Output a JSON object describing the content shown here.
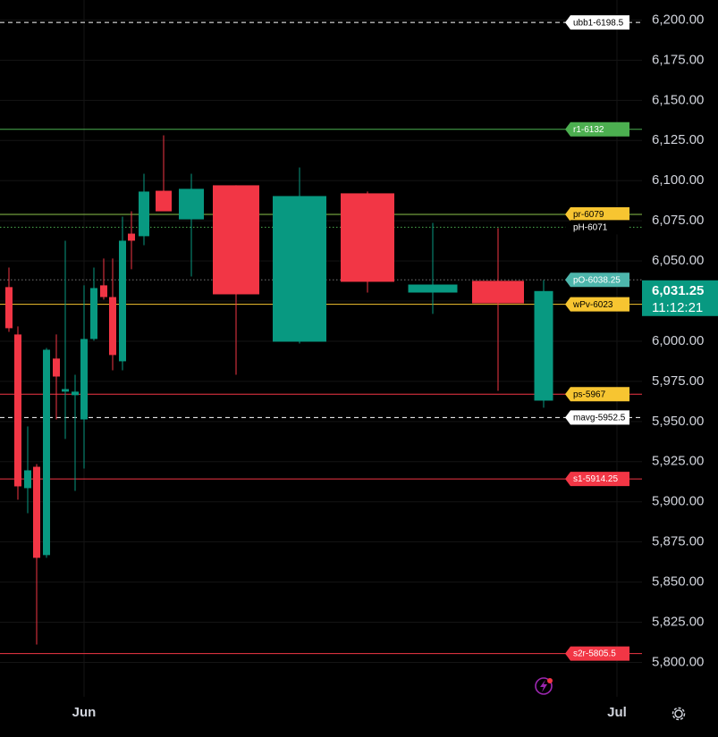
{
  "chart_data": {
    "type": "candlestick",
    "up_color": "#089981",
    "down_color": "#f23645",
    "ylim": [
      5780,
      6212.5
    ],
    "yticks": [
      {
        "value": 5800,
        "label": "5,800.00"
      },
      {
        "value": 5825,
        "label": "5,825.00"
      },
      {
        "value": 5850,
        "label": "5,850.00"
      },
      {
        "value": 5875,
        "label": "5,875.00"
      },
      {
        "value": 5900,
        "label": "5,900.00"
      },
      {
        "value": 5925,
        "label": "5,925.00"
      },
      {
        "value": 5950,
        "label": "5,950.00"
      },
      {
        "value": 5975,
        "label": "5,975.00"
      },
      {
        "value": 6000,
        "label": "6,000.00"
      },
      {
        "value": 6025,
        "label": "6,025.00"
      },
      {
        "value": 6050,
        "label": "6,050.00"
      },
      {
        "value": 6075,
        "label": "6,075.00"
      },
      {
        "value": 6100,
        "label": "6,100.00"
      },
      {
        "value": 6125,
        "label": "6,125.00"
      },
      {
        "value": 6150,
        "label": "6,150.00"
      },
      {
        "value": 6175,
        "label": "6,175.00"
      },
      {
        "value": 6200,
        "label": "6,200.00"
      }
    ],
    "grid": true,
    "x_labels": [
      "Jun",
      "Jul"
    ],
    "candles": [
      {
        "open": 6033.7,
        "high": 6045.9,
        "low": 6005.8,
        "close": 6008.1
      },
      {
        "open": 6004.2,
        "high": 6009.2,
        "low": 5901.3,
        "close": 5909.6
      },
      {
        "open": 5908.5,
        "high": 5946.9,
        "low": 5892.9,
        "close": 5919.6
      },
      {
        "open": 5921.8,
        "high": 5923.5,
        "low": 5811.1,
        "close": 5865.1
      },
      {
        "open": 5866.8,
        "high": 5995.8,
        "low": 5865.1,
        "close": 5994.7
      },
      {
        "open": 5989.2,
        "high": 6004.2,
        "low": 5951.3,
        "close": 5978.0
      },
      {
        "open": 5968.6,
        "high": 6062.6,
        "low": 5939.1,
        "close": 5970.2
      },
      {
        "open": 5966.4,
        "high": 5979.1,
        "low": 5906.8,
        "close": 5968.6
      },
      {
        "open": 5951.3,
        "high": 6034.8,
        "low": 5920.7,
        "close": 6001.4
      },
      {
        "open": 6001.4,
        "high": 6045.9,
        "low": 6000.3,
        "close": 6033.1
      },
      {
        "open": 6034.8,
        "high": 6051.5,
        "low": 6025.9,
        "close": 6027.5
      },
      {
        "open": 6027.5,
        "high": 6051.5,
        "low": 5981.9,
        "close": 5991.4
      },
      {
        "open": 5987.5,
        "high": 6077.6,
        "low": 5981.9,
        "close": 6062.6
      },
      {
        "open": 6067.0,
        "high": 6080.9,
        "low": 6044.8,
        "close": 6062.6
      },
      {
        "open": 6065.4,
        "high": 6104.3,
        "low": 6059.8,
        "close": 6093.2
      },
      {
        "open": 6093.7,
        "high": 6128.2,
        "low": 6080.9,
        "close": 6080.9
      },
      {
        "open": 6075.9,
        "high": 6104.3,
        "low": 6040.3,
        "close": 6094.9
      },
      {
        "open": 6097.1,
        "high": 6097.1,
        "low": 5979.1,
        "close": 6029.2
      },
      {
        "open": 5999.7,
        "high": 6108.2,
        "low": 5998.6,
        "close": 6090.4
      },
      {
        "open": 6092.1,
        "high": 6093.2,
        "low": 6030.3,
        "close": 6037.0
      },
      {
        "open": 6030.3,
        "high": 6073.7,
        "low": 6017.0,
        "close": 6035.3
      },
      {
        "open": 6037.6,
        "high": 6070.4,
        "low": 5969.1,
        "close": 6023.6
      },
      {
        "open": 5963.0,
        "high": 6038.1,
        "low": 5958.6,
        "close": 6031.25
      }
    ],
    "levels": [
      {
        "label": "ubb1-6198.5",
        "value": 6198.5,
        "color": "#ffffff",
        "text_color": "#000000",
        "style": "dashed"
      },
      {
        "label": "r1-6132",
        "value": 6132,
        "color": "#4caf50",
        "text_color": "#ffffff",
        "style": "solid"
      },
      {
        "label": "pr-6079",
        "value": 6079,
        "color": "#f7c531",
        "line_color": "#8bc34a",
        "text_color": "#000000",
        "style": "solid"
      },
      {
        "label": "pH-6071",
        "value": 6071,
        "color": "#000000",
        "line_color": "#4caf50",
        "text_color": "#ffffff",
        "style": "dotted"
      },
      {
        "label": "pO-6038.25",
        "value": 6038.25,
        "color": "#4db6ac",
        "line_color": "#777777",
        "text_color": "#ffffff",
        "style": "dotted"
      },
      {
        "label": "wPv-6023",
        "value": 6023,
        "color": "#f7c531",
        "text_color": "#000000",
        "style": "solid"
      },
      {
        "label": "ps-5967",
        "value": 5967,
        "color": "#f7c531",
        "line_color": "#f23645",
        "text_color": "#000000",
        "style": "solid"
      },
      {
        "label": "mavg-5952.5",
        "value": 5952.5,
        "color": "#ffffff",
        "text_color": "#000000",
        "style": "dashed"
      },
      {
        "label": "s1-5914.25",
        "value": 5914.25,
        "color": "#f23645",
        "text_color": "#ffffff",
        "style": "solid"
      },
      {
        "label": "s2r-5805.5",
        "value": 5805.5,
        "color": "#f23645",
        "text_color": "#ffffff",
        "style": "solid"
      }
    ],
    "last_price": {
      "value": 6031.25,
      "label": "6,031.25"
    },
    "countdown": "11:12:21"
  }
}
